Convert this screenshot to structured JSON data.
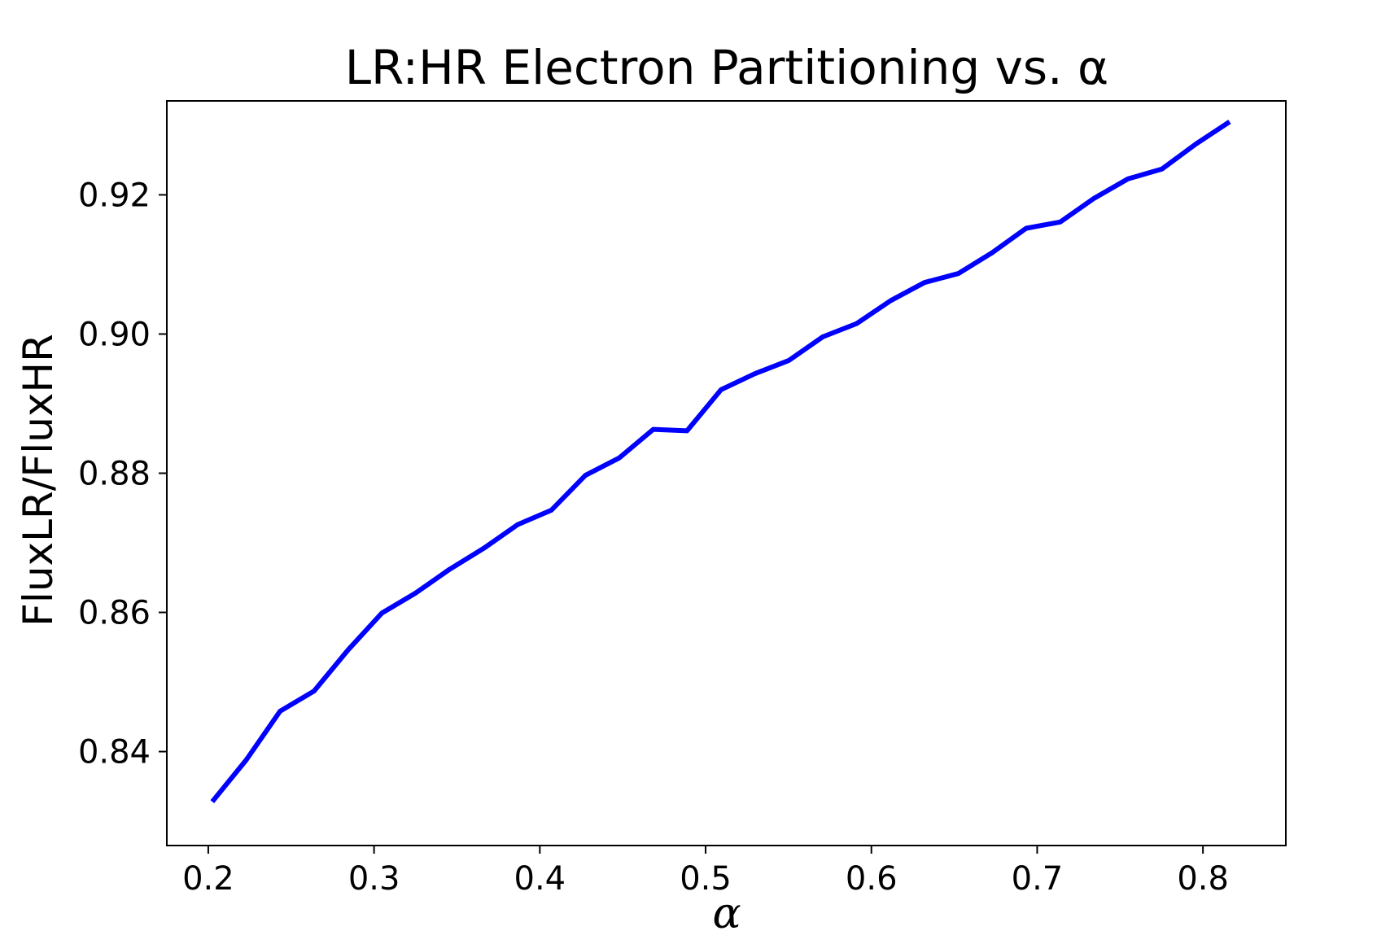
{
  "chart_data": {
    "type": "line",
    "title": "LR:HR Electron Partitioning vs. α",
    "xlabel": "α",
    "ylabel": "FluxLR/FluxHR",
    "xlim": [
      0.175,
      0.85
    ],
    "ylim": [
      0.8265,
      0.9335
    ],
    "xticks": [
      0.2,
      0.3,
      0.4,
      0.5,
      0.6,
      0.7,
      0.8
    ],
    "xtick_labels": [
      "0.2",
      "0.3",
      "0.4",
      "0.5",
      "0.6",
      "0.7",
      "0.8"
    ],
    "yticks": [
      0.84,
      0.86,
      0.88,
      0.9,
      0.92
    ],
    "ytick_labels": [
      "0.84",
      "0.86",
      "0.88",
      "0.90",
      "0.92"
    ],
    "grid": false,
    "legend": "none",
    "series": [
      {
        "color": "#0000ff",
        "x": [
          0.2024,
          0.2229,
          0.2433,
          0.2638,
          0.2843,
          0.3047,
          0.3252,
          0.3456,
          0.3661,
          0.3865,
          0.407,
          0.4275,
          0.4479,
          0.4684,
          0.4888,
          0.5093,
          0.5297,
          0.5502,
          0.5707,
          0.5911,
          0.6116,
          0.632,
          0.6525,
          0.6729,
          0.6934,
          0.7139,
          0.7343,
          0.7548,
          0.7752,
          0.7957,
          0.8161
        ],
        "y": [
          0.8328,
          0.8388,
          0.8458,
          0.8487,
          0.8546,
          0.8599,
          0.8628,
          0.8662,
          0.8692,
          0.8726,
          0.8747,
          0.8797,
          0.8822,
          0.8863,
          0.8861,
          0.892,
          0.8943,
          0.8962,
          0.8996,
          0.9015,
          0.9048,
          0.9074,
          0.9087,
          0.9117,
          0.9152,
          0.9161,
          0.9195,
          0.9223,
          0.9237,
          0.9273,
          0.9305
        ]
      }
    ]
  }
}
